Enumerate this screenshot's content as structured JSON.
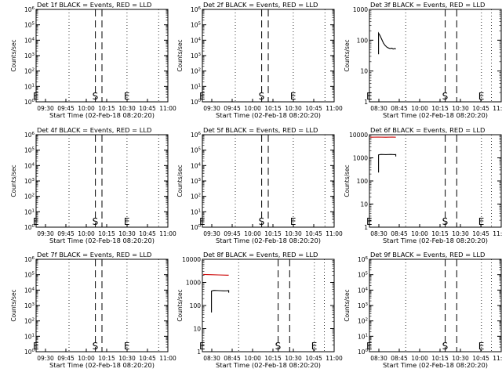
{
  "figure": {
    "background": "#ffffff",
    "event_color": "#000000",
    "lld_color": "#cc0000"
  },
  "chart_data": [
    {
      "type": "line",
      "title": "Det 1f BLACK = Events, RED = LLD",
      "xlabel": "Start Time (02-Feb-18 08:20:20)",
      "ylabel": "Counts/sec",
      "scale": "log",
      "ylim": [
        1,
        1000000
      ],
      "xlim": [
        "09:20",
        "11:00"
      ],
      "x_ticks": [
        "09:30",
        "09:45",
        "10:00",
        "10:15",
        "10:30",
        "10:45",
        "11:00"
      ],
      "y_ticks": [
        "10^0",
        "10^1",
        "10^2",
        "10^3",
        "10^4",
        "10^5",
        "10^6"
      ],
      "markers": [
        {
          "label": "E",
          "x": "09:20",
          "style": "dotted"
        },
        {
          "label": "",
          "x": "09:45",
          "style": "dotted"
        },
        {
          "label": "S",
          "x": "10:05",
          "style": "dashed"
        },
        {
          "label": "",
          "x": "10:10",
          "style": "dashed"
        },
        {
          "label": "E",
          "x": "10:29",
          "style": "dotted"
        },
        {
          "label": "",
          "x": "10:53",
          "style": "dotted"
        }
      ],
      "series": []
    },
    {
      "type": "line",
      "title": "Det 2f BLACK = Events, RED = LLD",
      "xlabel": "Start Time (02-Feb-18 08:20:20)",
      "ylabel": "Counts/sec",
      "scale": "log",
      "ylim": [
        1,
        1000000
      ],
      "xlim": [
        "09:20",
        "11:00"
      ],
      "x_ticks": [
        "09:30",
        "09:45",
        "10:00",
        "10:15",
        "10:30",
        "10:45",
        "11:00"
      ],
      "y_ticks": [
        "10^0",
        "10^1",
        "10^2",
        "10^3",
        "10^4",
        "10^5",
        "10^6"
      ],
      "markers": [
        {
          "label": "E",
          "x": "09:20",
          "style": "dotted"
        },
        {
          "label": "",
          "x": "09:45",
          "style": "dotted"
        },
        {
          "label": "S",
          "x": "10:05",
          "style": "dashed"
        },
        {
          "label": "",
          "x": "10:10",
          "style": "dashed"
        },
        {
          "label": "E",
          "x": "10:29",
          "style": "dotted"
        },
        {
          "label": "",
          "x": "10:53",
          "style": "dotted"
        }
      ],
      "series": []
    },
    {
      "type": "line",
      "title": "Det 3f BLACK = Events, RED = LLD",
      "xlabel": "Start Time (02-Feb-18 08:20:20)",
      "ylabel": "Counts/sec",
      "scale": "log",
      "ylim": [
        1,
        1000
      ],
      "xlim": [
        "08:20",
        "11:00"
      ],
      "x_ticks": [
        "08:30",
        "08:45",
        "10:00",
        "10:15",
        "10:30",
        "10:45",
        "11:00"
      ],
      "y_ticks": [
        "1",
        "10",
        "100",
        "1000"
      ],
      "markers": [
        {
          "label": "E",
          "x": "08:20",
          "style": "dotted"
        },
        {
          "label": "",
          "x": "09:04",
          "style": "dotted"
        },
        {
          "label": "S",
          "x": "09:52",
          "style": "dashed"
        },
        {
          "label": "",
          "x": "10:06",
          "style": "dashed"
        },
        {
          "label": "E",
          "x": "10:36",
          "style": "dotted"
        },
        {
          "label": "",
          "x": "10:48",
          "style": "dotted"
        }
      ],
      "series": [
        {
          "color": "#000000",
          "points": [
            [
              "08:31",
              35
            ],
            [
              "08:31",
              170
            ],
            [
              "08:33",
              140
            ],
            [
              "08:35",
              105
            ],
            [
              "08:37",
              80
            ],
            [
              "08:39",
              68
            ],
            [
              "08:41",
              60
            ],
            [
              "08:43",
              56
            ],
            [
              "08:45",
              54
            ],
            [
              "08:47",
              55
            ],
            [
              "08:49",
              52
            ],
            [
              "08:51",
              54
            ],
            [
              "08:52",
              52
            ]
          ]
        }
      ]
    },
    {
      "type": "line",
      "title": "Det 4f BLACK = Events, RED = LLD",
      "xlabel": "Start Time (02-Feb-18 08:20:20)",
      "ylabel": "Counts/sec",
      "scale": "log",
      "ylim": [
        1,
        1000000
      ],
      "xlim": [
        "09:20",
        "11:00"
      ],
      "x_ticks": [
        "09:30",
        "09:45",
        "10:00",
        "10:15",
        "10:30",
        "10:45",
        "11:00"
      ],
      "y_ticks": [
        "10^0",
        "10^1",
        "10^2",
        "10^3",
        "10^4",
        "10^5",
        "10^6"
      ],
      "markers": [
        {
          "label": "E",
          "x": "09:20",
          "style": "dotted"
        },
        {
          "label": "",
          "x": "09:45",
          "style": "dotted"
        },
        {
          "label": "S",
          "x": "10:05",
          "style": "dashed"
        },
        {
          "label": "",
          "x": "10:10",
          "style": "dashed"
        },
        {
          "label": "E",
          "x": "10:29",
          "style": "dotted"
        },
        {
          "label": "",
          "x": "10:53",
          "style": "dotted"
        }
      ],
      "series": []
    },
    {
      "type": "line",
      "title": "Det 5f BLACK = Events, RED = LLD",
      "xlabel": "Start Time (02-Feb-18 08:20:20)",
      "ylabel": "Counts/sec",
      "scale": "log",
      "ylim": [
        1,
        1000000
      ],
      "xlim": [
        "09:20",
        "11:00"
      ],
      "x_ticks": [
        "09:30",
        "09:45",
        "10:00",
        "10:15",
        "10:30",
        "10:45",
        "11:00"
      ],
      "y_ticks": [
        "10^0",
        "10^1",
        "10^2",
        "10^3",
        "10^4",
        "10^5",
        "10^6"
      ],
      "markers": [
        {
          "label": "E",
          "x": "09:20",
          "style": "dotted"
        },
        {
          "label": "",
          "x": "09:45",
          "style": "dotted"
        },
        {
          "label": "S",
          "x": "10:05",
          "style": "dashed"
        },
        {
          "label": "",
          "x": "10:10",
          "style": "dashed"
        },
        {
          "label": "E",
          "x": "10:29",
          "style": "dotted"
        },
        {
          "label": "",
          "x": "10:53",
          "style": "dotted"
        }
      ],
      "series": []
    },
    {
      "type": "line",
      "title": "Det 6f BLACK = Events, RED = LLD",
      "xlabel": "Start Time (02-Feb-18 08:20:20)",
      "ylabel": "Counts/sec",
      "scale": "log",
      "ylim": [
        1,
        10000
      ],
      "xlim": [
        "08:20",
        "11:00"
      ],
      "x_ticks": [
        "08:30",
        "08:45",
        "10:00",
        "10:15",
        "10:30",
        "10:45",
        "11:00"
      ],
      "y_ticks": [
        "1",
        "10",
        "100",
        "1000",
        "10000"
      ],
      "markers": [
        {
          "label": "E",
          "x": "08:20",
          "style": "dotted"
        },
        {
          "label": "",
          "x": "09:04",
          "style": "dotted"
        },
        {
          "label": "S",
          "x": "09:52",
          "style": "dashed"
        },
        {
          "label": "",
          "x": "10:06",
          "style": "dashed"
        },
        {
          "label": "E",
          "x": "10:36",
          "style": "dotted"
        },
        {
          "label": "",
          "x": "10:48",
          "style": "dotted"
        }
      ],
      "series": [
        {
          "color": "#cc0000",
          "points": [
            [
              "08:21",
              7800
            ],
            [
              "08:30",
              7900
            ],
            [
              "08:40",
              7800
            ],
            [
              "08:48",
              7900
            ],
            [
              "08:52",
              7800
            ]
          ]
        },
        {
          "color": "#000000",
          "points": [
            [
              "08:31",
              230
            ],
            [
              "08:31",
              1350
            ],
            [
              "08:34",
              1400
            ],
            [
              "08:40",
              1380
            ],
            [
              "08:46",
              1400
            ],
            [
              "08:50",
              1380
            ],
            [
              "08:52",
              1390
            ],
            [
              "08:52",
              1150
            ]
          ]
        }
      ]
    },
    {
      "type": "line",
      "title": "Det 7f BLACK = Events, RED = LLD",
      "xlabel": "Start Time (02-Feb-18 08:20:20)",
      "ylabel": "Counts/sec",
      "scale": "log",
      "ylim": [
        1,
        1000000
      ],
      "xlim": [
        "09:20",
        "11:00"
      ],
      "x_ticks": [
        "09:30",
        "09:45",
        "10:00",
        "10:15",
        "10:30",
        "10:45",
        "11:00"
      ],
      "y_ticks": [
        "10^0",
        "10^1",
        "10^2",
        "10^3",
        "10^4",
        "10^5",
        "10^6"
      ],
      "markers": [
        {
          "label": "E",
          "x": "09:20",
          "style": "dotted"
        },
        {
          "label": "",
          "x": "09:45",
          "style": "dotted"
        },
        {
          "label": "S",
          "x": "10:05",
          "style": "dashed"
        },
        {
          "label": "",
          "x": "10:10",
          "style": "dashed"
        },
        {
          "label": "E",
          "x": "10:29",
          "style": "dotted"
        },
        {
          "label": "",
          "x": "10:53",
          "style": "dotted"
        }
      ],
      "series": []
    },
    {
      "type": "line",
      "title": "Det 8f BLACK = Events, RED = LLD",
      "xlabel": "Start Time (02-Feb-18 08:20:20)",
      "ylabel": "Counts/sec",
      "scale": "log",
      "ylim": [
        1,
        10000
      ],
      "xlim": [
        "08:20",
        "11:00"
      ],
      "x_ticks": [
        "08:30",
        "08:45",
        "10:00",
        "10:15",
        "10:30",
        "10:45",
        "11:00"
      ],
      "y_ticks": [
        "1",
        "10",
        "100",
        "1000",
        "10000"
      ],
      "markers": [
        {
          "label": "E",
          "x": "08:20",
          "style": "dotted"
        },
        {
          "label": "",
          "x": "09:04",
          "style": "dotted"
        },
        {
          "label": "S",
          "x": "09:52",
          "style": "dashed"
        },
        {
          "label": "",
          "x": "10:06",
          "style": "dashed"
        },
        {
          "label": "E",
          "x": "10:36",
          "style": "dotted"
        },
        {
          "label": "",
          "x": "10:48",
          "style": "dotted"
        }
      ],
      "series": [
        {
          "color": "#cc0000",
          "points": [
            [
              "08:21",
              2200
            ],
            [
              "08:30",
              2150
            ],
            [
              "08:40",
              2100
            ],
            [
              "08:50",
              2050
            ],
            [
              "08:52",
              2050
            ]
          ]
        },
        {
          "color": "#000000",
          "points": [
            [
              "08:31",
              50
            ],
            [
              "08:31",
              420
            ],
            [
              "08:34",
              450
            ],
            [
              "08:40",
              440
            ],
            [
              "08:46",
              430
            ],
            [
              "08:50",
              435
            ],
            [
              "08:52",
              440
            ],
            [
              "08:52",
              360
            ]
          ]
        }
      ]
    },
    {
      "type": "line",
      "title": "Det 9f BLACK = Events, RED = LLD",
      "xlabel": "Start Time (02-Feb-18 08:20:20)",
      "ylabel": "Counts/sec",
      "scale": "log",
      "ylim": [
        1,
        1000000
      ],
      "xlim": [
        "08:20",
        "11:00"
      ],
      "x_ticks": [
        "08:30",
        "08:45",
        "10:00",
        "10:15",
        "10:30",
        "10:45",
        "11:00"
      ],
      "y_ticks": [
        "10^0",
        "10^1",
        "10^2",
        "10^3",
        "10^4",
        "10^5",
        "10^6"
      ],
      "markers": [
        {
          "label": "E",
          "x": "08:20",
          "style": "dotted"
        },
        {
          "label": "",
          "x": "09:04",
          "style": "dotted"
        },
        {
          "label": "S",
          "x": "09:52",
          "style": "dashed"
        },
        {
          "label": "",
          "x": "10:06",
          "style": "dashed"
        },
        {
          "label": "E",
          "x": "10:36",
          "style": "dotted"
        },
        {
          "label": "",
          "x": "10:48",
          "style": "dotted"
        }
      ],
      "series": []
    }
  ]
}
